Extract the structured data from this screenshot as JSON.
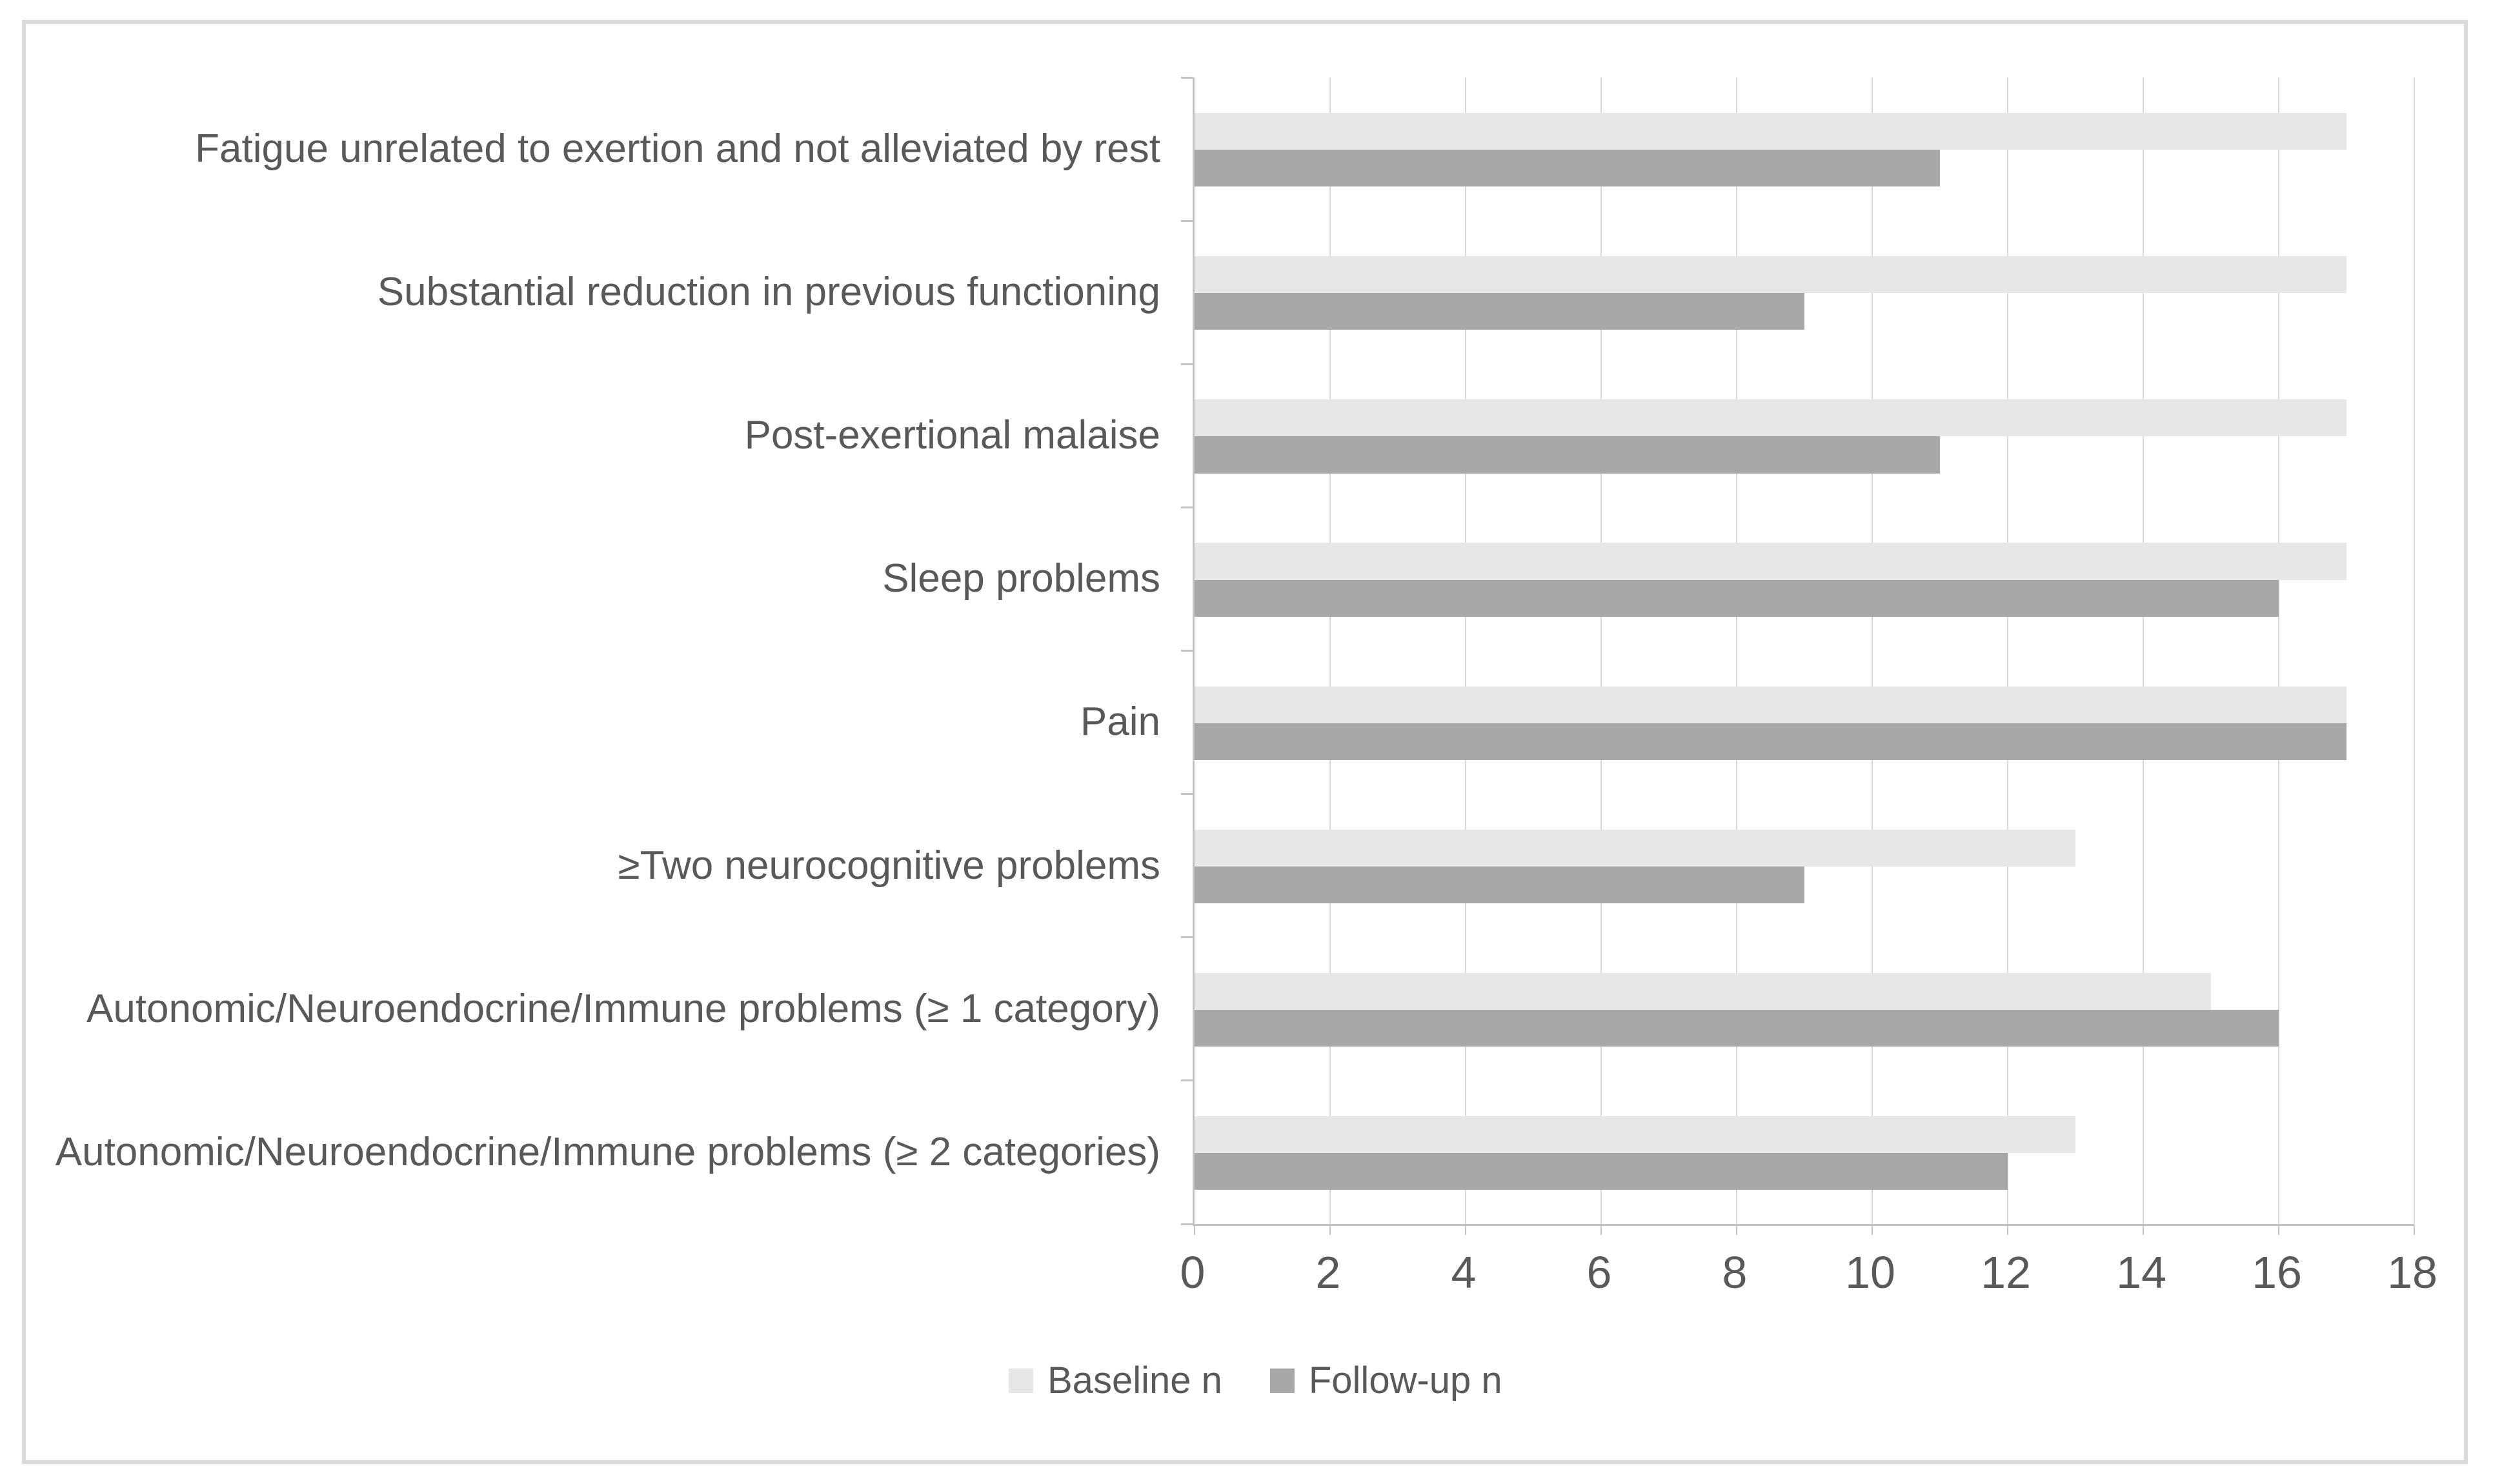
{
  "figure": {
    "background": "#ffffff",
    "frame_border_color": "#d9d9d9"
  },
  "chart_data": {
    "type": "bar",
    "orientation": "horizontal",
    "title": "",
    "xlabel": "",
    "ylabel": "",
    "categories": [
      "Fatigue unrelated to exertion and not alleviated by rest",
      "Substantial reduction in previous functioning",
      "Post-exertional malaise",
      "Sleep problems",
      "Pain",
      "≥Two neurocognitive problems",
      "Autonomic/Neuroendocrine/Immune problems (≥ 1 category)",
      "Autonomic/Neuroendocrine/Immune problems (≥ 2 categories)"
    ],
    "series": [
      {
        "name": "Baseline n",
        "color": "#e7e7e7",
        "values": [
          17,
          17,
          17,
          17,
          17,
          13,
          15,
          13
        ]
      },
      {
        "name": "Follow-up n",
        "color": "#a8a8a8",
        "values": [
          11,
          9,
          11,
          16,
          17,
          9,
          16,
          12
        ]
      }
    ],
    "xlim": [
      0,
      18
    ],
    "xticks": [
      0,
      2,
      4,
      6,
      8,
      10,
      12,
      14,
      16,
      18
    ],
    "grid": "vertical",
    "gridline_color": "#d9d9d9",
    "axis_line_color": "#c3c3c3",
    "text_color": "#595959",
    "legend_position": "bottom"
  }
}
